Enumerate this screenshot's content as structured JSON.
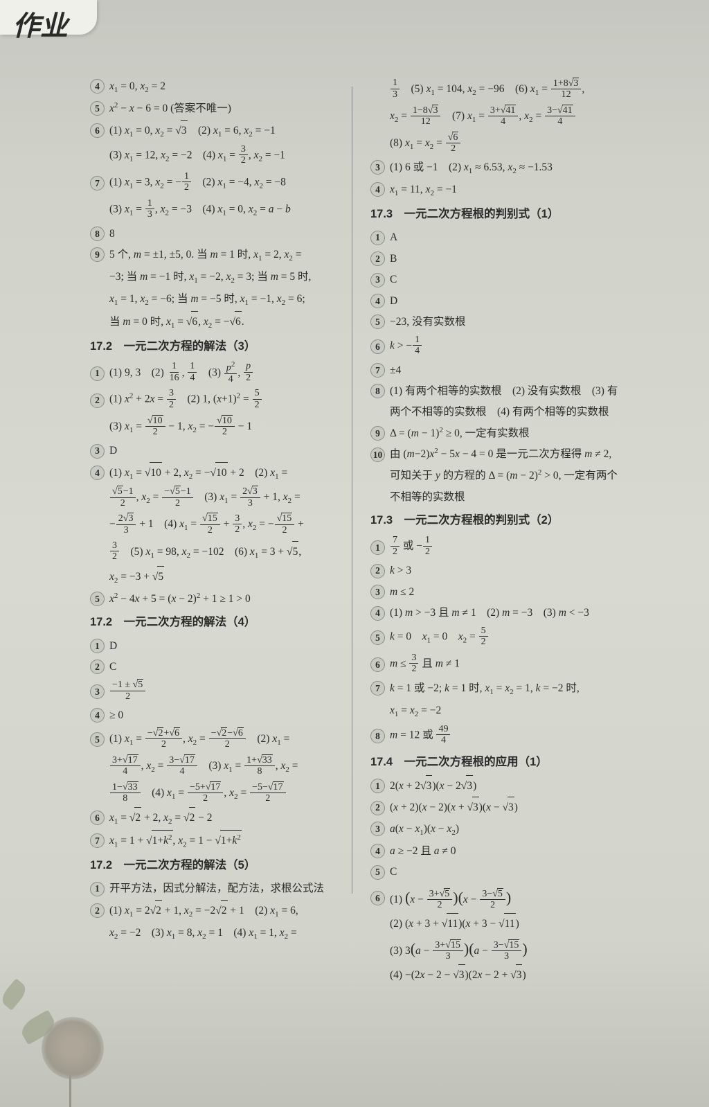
{
  "tab": "作业",
  "left": {
    "l1": "x₁ = 0, x₂ = 2",
    "l2": "x² − x − 6 = 0 (答案不唯一)",
    "l3a": "(1) x₁ = 0, x₂ = √3　(2) x₁ = 6, x₂ = −1",
    "l3b": "(3) x₁ = 12, x₂ = −2　(4) x₁ = 3/2, x₂ = −1",
    "l4a": "(1) x₁ = 3, x₂ = −1/2　(2) x₁ = −4, x₂ = −8",
    "l4b": "(3) x₁ = 1/3, x₂ = −3　(4) x₁ = 0, x₂ = a − b",
    "l5": "8",
    "l6a": "5 个, m = ±1, ±5, 0. 当 m = 1 时, x₁ = 2, x₂ =",
    "l6b": "−3; 当 m = −1 时, x₁ = −2, x₂ = 3; 当 m = 5 时,",
    "l6c": "x₁ = 1, x₂ = −6; 当 m = −5 时, x₁ = −1, x₂ = 6;",
    "l6d": "当 m = 0 时, x₁ = √6, x₂ = −√6.",
    "h1": "17.2　一元二次方程的解法（3）",
    "s3_1": "(1) 9, 3　(2) 1/16, 1/4　(3) p²/4, p/2",
    "s3_2a": "(1) x² + 2x = 3/2　(2) 1, (x+1)² = 5/2",
    "s3_2b": "(3) x₁ = √10/2 − 1, x₂ = −√10/2 − 1",
    "s3_3": "D",
    "s3_4a": "(1) x₁ = √10 + 2, x₂ = −√10 + 2　(2) x₁ =",
    "s3_4b": "(√5−1)/2, x₂ = (−√5−1)/2　(3) x₁ = 2√3/3 + 1, x₂ =",
    "s3_4c": "−2√3/3 + 1　(4) x₁ = √15/2 + 3/2, x₂ = −√15/2 +",
    "s3_4d": "3/2　(5) x₁ = 98, x₂ = −102　(6) x₁ = 3 + √5,",
    "s3_4e": "x₂ = −3 + √5",
    "s3_5": "x² − 4x + 5 = (x − 2)² + 1 ≥ 1 > 0",
    "h2": "17.2　一元二次方程的解法（4）",
    "s4_1": "D",
    "s4_2": "C",
    "s4_3": "(−1 ± √5)/2",
    "s4_4": "≥ 0",
    "s4_5a": "(1) x₁ = (−√2+√6)/2, x₂ = (−√2−√6)/2　(2) x₁ =",
    "s4_5b": "(3+√17)/4, x₂ = (3−√17)/4　(3) x₁ = (1+√33)/8, x₂ =",
    "s4_5c": "(1−√33)/8　(4) x₁ = (−5+√17)/2, x₂ = (−5−√17)/2",
    "s4_6": "x₁ = √2 + 2, x₂ = √2 − 2",
    "s4_7": "x₁ = 1 + √(1+k²), x₂ = 1 − √(1+k²)",
    "h3": "17.2　一元二次方程的解法（5）",
    "s5_1": "开平方法，因式分解法，配方法，求根公式法",
    "s5_2a": "(1) x₁ = 2√2 + 1, x₂ = −2√2 + 1　(2) x₁ = 6,",
    "s5_2b": "x₂ = −2　(3) x₁ = 8, x₂ = 1　(4) x₁ = 1, x₂ ="
  },
  "right": {
    "r0a": "1/3　(5) x₁ = 104, x₂ = −96　(6) x₁ = (1+8√3)/12,",
    "r0b": "x₂ = (1−8√3)/12　(7) x₁ = (3+√41)/4, x₂ = (3−√41)/4",
    "r0c": "(8) x₁ = x₂ = √6/2",
    "r1": "(1) 6 或 −1　(2) x₁ ≈ 6.53, x₂ ≈ −1.53",
    "r2": "x₁ = 11, x₂ = −1",
    "h4": "17.3　一元二次方程根的判别式（1）",
    "d1_1": "A",
    "d1_2": "B",
    "d1_3": "C",
    "d1_4": "D",
    "d1_5": "−23, 没有实数根",
    "d1_6": "k > −1/4",
    "d1_7": "±4",
    "d1_8a": "(1) 有两个相等的实数根　(2) 没有实数根　(3) 有",
    "d1_8b": "两个不相等的实数根　(4) 有两个相等的实数根",
    "d1_9": "Δ = (m − 1)² ≥ 0, 一定有实数根",
    "d1_10a": "由 (m−2)x² − 5x − 4 = 0 是一元二次方程得 m ≠ 2,",
    "d1_10b": "可知关于 y 的方程的 Δ = (m − 2)² > 0, 一定有两个",
    "d1_10c": "不相等的实数根",
    "h5": "17.3　一元二次方程根的判别式（2）",
    "d2_1": "7/2 或 −1/2",
    "d2_2": "k > 3",
    "d2_3": "m ≤ 2",
    "d2_4": "(1) m > −3 且 m ≠ 1　(2) m = −3　(3) m < −3",
    "d2_5": "k = 0　x₁ = 0　x₂ = 5/2",
    "d2_6": "m ≤ 3/2 且 m ≠ 1",
    "d2_7a": "k = 1 或 −2; k = 1 时, x₁ = x₂ = 1, k = −2 时,",
    "d2_7b": "x₁ = x₂ = −2",
    "d2_8": "m = 12 或 49/4",
    "h6": "17.4　一元二次方程根的应用（1）",
    "a1": "2(x + 2√3)(x − 2√3)",
    "a2": "(x + 2)(x − 2)(x + √3)(x − √3)",
    "a3": "a(x − x₁)(x − x₂)",
    "a4": "a ≥ −2 且 a ≠ 0",
    "a5": "C",
    "a6a": "(1) (x − (3+√5)/2)(x − (3−√5)/2)",
    "a6b": "(2) (x + 3 + √11)(x + 3 − √11)",
    "a6c": "(3) 3(a − (3+√15)/3)(a − (3−√15)/3)",
    "a6d": "(4) −(2x − 2 − √3)(2x − 2 + √3)"
  }
}
